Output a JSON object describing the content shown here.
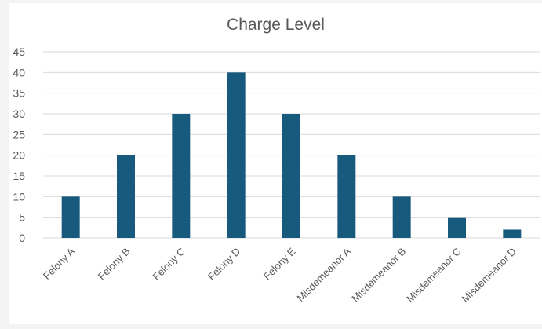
{
  "chart_data": {
    "type": "bar",
    "title": "Charge Level",
    "categories": [
      "Felony A",
      "Felony B",
      "Felony C",
      "Felony D",
      "Felony E",
      "Misdemeanor A",
      "Misdemeanor B",
      "Misdemeanor C",
      "Misdemeanor D"
    ],
    "values": [
      10,
      20,
      30,
      40,
      30,
      20,
      10,
      5,
      2
    ],
    "ylim": [
      0,
      45
    ],
    "yticks": [
      "0",
      "5",
      "10",
      "15",
      "20",
      "25",
      "30",
      "35",
      "40",
      "45"
    ],
    "grid": true,
    "legend": "none",
    "colors": {
      "bar": "#185a7d",
      "grid": "#d9d9d9",
      "text": "#595959"
    }
  }
}
